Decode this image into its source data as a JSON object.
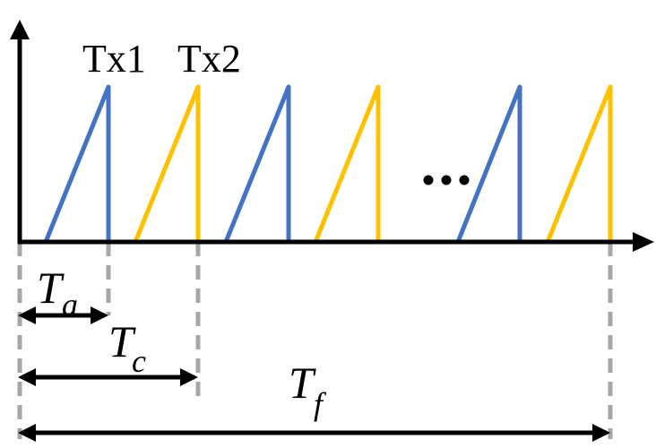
{
  "labels": {
    "tx1": "Tx1",
    "tx2": "Tx2",
    "ellipsis": "...",
    "ta_main": "T",
    "ta_sub": "a",
    "tc_main": "T",
    "tc_sub": "c",
    "tf_main": "T",
    "tf_sub": "f"
  },
  "colors": {
    "tx1": "#4472C4",
    "tx2": "#FFC000",
    "axis": "#000000",
    "guide": "#A6A6A6"
  }
}
